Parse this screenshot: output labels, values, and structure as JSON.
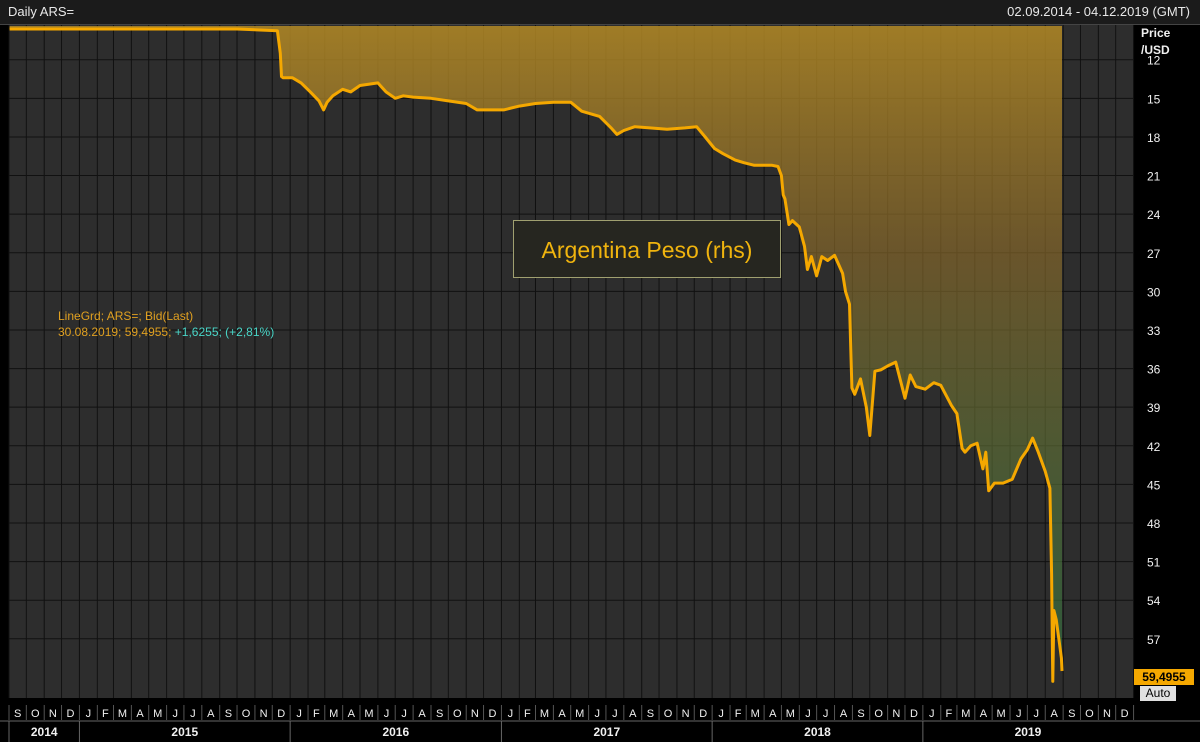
{
  "header": {
    "title": "Daily ARS=",
    "date_range": "02.09.2014 - 04.12.2019 (GMT)"
  },
  "legend": {
    "line1": "LineGrd; ARS=; Bid(Last)",
    "date_value": "30.08.2019; 59,4955;",
    "change": "+1,6255; (+2,81%)"
  },
  "annotation": "Argentina Peso (rhs)",
  "last_value_label": "59,4955",
  "auto_label": "Auto",
  "colors": {
    "line": "#f5a800",
    "background": "#2d2d2d",
    "grid": "#111111",
    "fill_top": "#b48a25",
    "fill_bottom": "#2e7a45"
  },
  "chart_data": {
    "type": "line",
    "title": "",
    "y_label_lines": [
      "Price",
      "/USD"
    ],
    "y_inverted": true,
    "ylim": [
      9.3,
      61.6
    ],
    "y_ticks": [
      12,
      15,
      18,
      21,
      24,
      27,
      30,
      33,
      36,
      39,
      42,
      45,
      48,
      51,
      54,
      57
    ],
    "y_tick_labels": [
      "12",
      "15",
      "18",
      "21",
      "24",
      "27",
      "30",
      "33",
      "36",
      "39",
      "42",
      "45",
      "48",
      "51",
      "54",
      "57"
    ],
    "x_range": [
      "2014-09-01",
      "2019-12-31"
    ],
    "months": [
      "S",
      "O",
      "N",
      "D",
      "J",
      "F",
      "M",
      "A",
      "M",
      "J",
      "J",
      "A",
      "S",
      "O",
      "N",
      "D",
      "J",
      "F",
      "M",
      "A",
      "M",
      "J",
      "J",
      "A",
      "S",
      "O",
      "N",
      "D",
      "J",
      "F",
      "M",
      "A",
      "M",
      "J",
      "J",
      "A",
      "S",
      "O",
      "N",
      "D",
      "J",
      "F",
      "M",
      "A",
      "M",
      "J",
      "J",
      "A",
      "S",
      "O",
      "N",
      "D",
      "J",
      "F",
      "M",
      "A",
      "M",
      "J",
      "J",
      "A",
      "S",
      "O",
      "N",
      "D"
    ],
    "years": [
      "2014",
      "2015",
      "2016",
      "2017",
      "2018",
      "2019"
    ],
    "series": [
      {
        "points": [
          [
            "2014-09-02",
            8.4
          ],
          [
            "2014-10-15",
            8.5
          ],
          [
            "2014-12-01",
            8.55
          ],
          [
            "2015-02-01",
            8.65
          ],
          [
            "2015-04-01",
            8.85
          ],
          [
            "2015-06-01",
            9.05
          ],
          [
            "2015-08-01",
            9.25
          ],
          [
            "2015-10-01",
            9.45
          ],
          [
            "2015-12-10",
            9.75
          ],
          [
            "2015-12-15",
            11.5
          ],
          [
            "2015-12-17",
            13.3
          ],
          [
            "2015-12-20",
            13.4
          ],
          [
            "2016-01-05",
            13.4
          ],
          [
            "2016-01-20",
            13.8
          ],
          [
            "2016-02-05",
            14.5
          ],
          [
            "2016-02-20",
            15.2
          ],
          [
            "2016-02-28",
            15.9
          ],
          [
            "2016-03-05",
            15.3
          ],
          [
            "2016-03-15",
            14.8
          ],
          [
            "2016-04-01",
            14.3
          ],
          [
            "2016-04-15",
            14.5
          ],
          [
            "2016-05-01",
            14.0
          ],
          [
            "2016-06-01",
            13.8
          ],
          [
            "2016-06-15",
            14.5
          ],
          [
            "2016-07-01",
            15.0
          ],
          [
            "2016-07-15",
            14.8
          ],
          [
            "2016-08-01",
            14.9
          ],
          [
            "2016-09-01",
            15.0
          ],
          [
            "2016-10-01",
            15.2
          ],
          [
            "2016-11-01",
            15.4
          ],
          [
            "2016-11-20",
            15.9
          ],
          [
            "2016-12-20",
            15.9
          ],
          [
            "2017-01-05",
            15.9
          ],
          [
            "2017-02-01",
            15.6
          ],
          [
            "2017-03-01",
            15.4
          ],
          [
            "2017-04-01",
            15.3
          ],
          [
            "2017-05-01",
            15.3
          ],
          [
            "2017-05-20",
            16.0
          ],
          [
            "2017-06-20",
            16.4
          ],
          [
            "2017-07-10",
            17.3
          ],
          [
            "2017-07-20",
            17.8
          ],
          [
            "2017-08-01",
            17.5
          ],
          [
            "2017-08-20",
            17.2
          ],
          [
            "2017-09-15",
            17.3
          ],
          [
            "2017-10-15",
            17.4
          ],
          [
            "2017-11-15",
            17.3
          ],
          [
            "2017-12-05",
            17.2
          ],
          [
            "2017-12-20",
            18.0
          ],
          [
            "2018-01-05",
            18.9
          ],
          [
            "2018-01-20",
            19.3
          ],
          [
            "2018-02-10",
            19.8
          ],
          [
            "2018-02-25",
            20.0
          ],
          [
            "2018-03-15",
            20.2
          ],
          [
            "2018-04-15",
            20.2
          ],
          [
            "2018-04-25",
            20.3
          ],
          [
            "2018-05-01",
            21.0
          ],
          [
            "2018-05-04",
            22.5
          ],
          [
            "2018-05-07",
            22.8
          ],
          [
            "2018-05-14",
            24.8
          ],
          [
            "2018-05-20",
            24.5
          ],
          [
            "2018-06-01",
            25.0
          ],
          [
            "2018-06-10",
            26.5
          ],
          [
            "2018-06-15",
            28.3
          ],
          [
            "2018-06-22",
            27.3
          ],
          [
            "2018-07-01",
            28.8
          ],
          [
            "2018-07-10",
            27.3
          ],
          [
            "2018-07-20",
            27.6
          ],
          [
            "2018-08-01",
            27.2
          ],
          [
            "2018-08-15",
            28.6
          ],
          [
            "2018-08-20",
            30.0
          ],
          [
            "2018-08-27",
            31.0
          ],
          [
            "2018-08-31",
            37.5
          ],
          [
            "2018-09-05",
            38.0
          ],
          [
            "2018-09-15",
            36.8
          ],
          [
            "2018-09-25",
            39.0
          ],
          [
            "2018-10-01",
            41.2
          ],
          [
            "2018-10-10",
            36.2
          ],
          [
            "2018-10-20",
            36.1
          ],
          [
            "2018-11-01",
            35.8
          ],
          [
            "2018-11-15",
            35.5
          ],
          [
            "2018-12-01",
            38.3
          ],
          [
            "2018-12-10",
            36.5
          ],
          [
            "2018-12-20",
            37.4
          ],
          [
            "2019-01-05",
            37.6
          ],
          [
            "2019-01-20",
            37.1
          ],
          [
            "2019-02-01",
            37.3
          ],
          [
            "2019-02-20",
            38.9
          ],
          [
            "2019-03-01",
            39.5
          ],
          [
            "2019-03-10",
            42.2
          ],
          [
            "2019-03-15",
            42.5
          ],
          [
            "2019-03-25",
            42.0
          ],
          [
            "2019-04-05",
            41.8
          ],
          [
            "2019-04-15",
            43.8
          ],
          [
            "2019-04-20",
            42.5
          ],
          [
            "2019-04-25",
            45.5
          ],
          [
            "2019-05-05",
            44.9
          ],
          [
            "2019-05-20",
            44.9
          ],
          [
            "2019-06-05",
            44.6
          ],
          [
            "2019-06-20",
            43.0
          ],
          [
            "2019-07-01",
            42.3
          ],
          [
            "2019-07-10",
            41.4
          ],
          [
            "2019-07-20",
            42.5
          ],
          [
            "2019-08-01",
            44.0
          ],
          [
            "2019-08-09",
            45.3
          ],
          [
            "2019-08-12",
            52.0
          ],
          [
            "2019-08-13",
            56.5
          ],
          [
            "2019-08-14",
            60.3
          ],
          [
            "2019-08-16",
            54.8
          ],
          [
            "2019-08-20",
            55.5
          ],
          [
            "2019-08-26",
            57.5
          ],
          [
            "2019-08-29",
            58.5
          ],
          [
            "2019-08-30",
            59.5
          ]
        ]
      }
    ]
  }
}
